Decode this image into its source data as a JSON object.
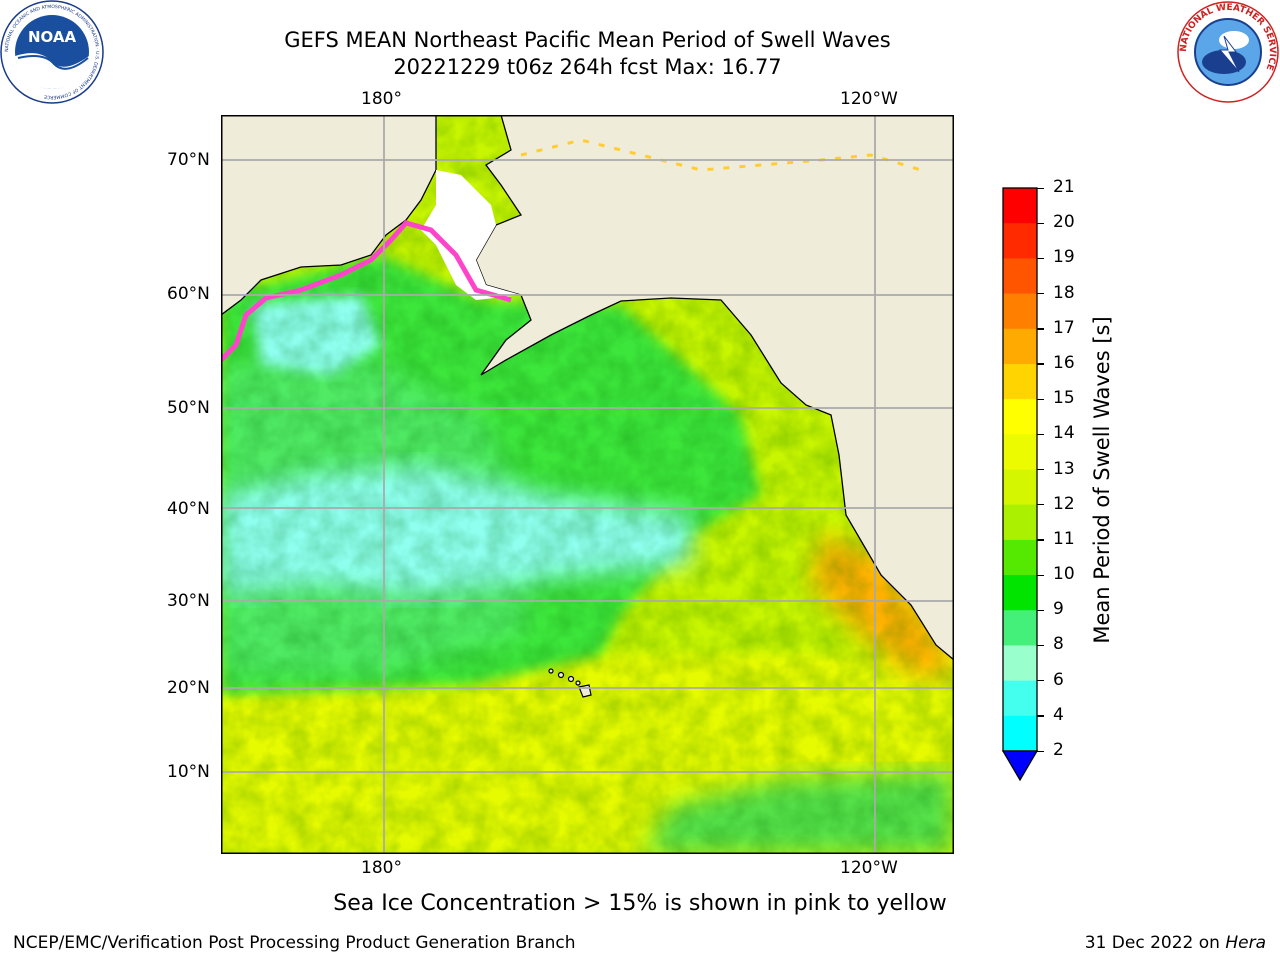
{
  "header": {
    "title_line1": "GEFS MEAN Northeast Pacific Mean Period of Swell Waves",
    "title_line2": "20221229 t06z 264h fcst   Max: 16.77"
  },
  "map": {
    "lon_labels_top": [
      "180°",
      "120°W"
    ],
    "lon_labels_bottom": [
      "180°",
      "120°W"
    ],
    "lat_labels": [
      "70°N",
      "60°N",
      "50°N",
      "40°N",
      "30°N",
      "20°N",
      "10°N"
    ],
    "land_color": "#efedda",
    "ice_colors": [
      "#ff44cc",
      "#ff9999",
      "#ffcc33"
    ],
    "grid_on": true
  },
  "colorbar": {
    "label": "Mean Period of Swell Waves [s]",
    "ticks": [
      "21",
      "20",
      "19",
      "18",
      "17",
      "16",
      "15",
      "14",
      "13",
      "12",
      "11",
      "10",
      "9",
      "8",
      "6",
      "4",
      "2"
    ],
    "colors": [
      "#ff0000",
      "#ff2a00",
      "#ff5500",
      "#ff7f00",
      "#ffaa00",
      "#ffd400",
      "#ffff00",
      "#ecfb00",
      "#d4f700",
      "#aaf000",
      "#55e800",
      "#00e400",
      "#44f07a",
      "#99ffcc",
      "#44ffee",
      "#00ffff",
      "#0099ff",
      "#0000ff"
    ],
    "extend": "min"
  },
  "footer": {
    "sea_ice_note": "Sea Ice Concentration > 15% is shown in pink to yellow",
    "branch": "NCEP/EMC/Verification Post Processing Product Generation Branch",
    "date_prefix": "31 Dec 2022 on ",
    "machine": "Hera"
  },
  "logos": {
    "noaa_text": "NOAA",
    "nws_ring_text": "NATIONAL WEATHER SERVICE",
    "noaa_ring_text": "NATIONAL OCEANIC AND ATMOSPHERIC ADMINISTRATION · U.S. DEPARTMENT OF COMMERCE"
  }
}
